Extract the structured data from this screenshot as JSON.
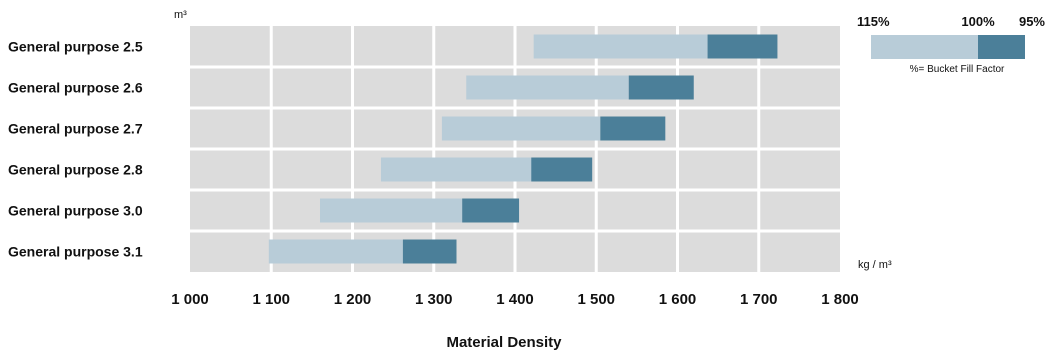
{
  "chart_data": {
    "type": "bar",
    "subtype": "floating-range",
    "xlabel": "Material Density",
    "y_unit": "m³",
    "x_unit": "kg / m³",
    "xlim": [
      1000,
      1800
    ],
    "x_ticks": [
      "1 000",
      "1 100",
      "1 200",
      "1 300",
      "1 400",
      "1 500",
      "1 600",
      "1 700",
      "1 800"
    ],
    "x_tick_values": [
      1000,
      1100,
      1200,
      1300,
      1400,
      1500,
      1600,
      1700,
      1800
    ],
    "grid": true,
    "legend_position": "top-right",
    "colors": {
      "light": "#b8ccd8",
      "dark": "#4b7f99",
      "background": "#dcdcdc",
      "grid": "#ffffff"
    },
    "legend": {
      "labels": [
        "115%",
        "100%",
        "95%"
      ],
      "note": "%= Bucket Fill Factor"
    },
    "categories": [
      "General purpose 2.5",
      "General purpose 2.6",
      "General purpose 2.7",
      "General purpose 2.8",
      "General purpose 3.0",
      "General purpose 3.1"
    ],
    "series": [
      {
        "name": "115%",
        "values": [
          1423,
          1340,
          1310,
          1235,
          1160,
          1097
        ]
      },
      {
        "name": "100%",
        "values": [
          1637,
          1540,
          1505,
          1420,
          1335,
          1262
        ]
      },
      {
        "name": "95%",
        "values": [
          1723,
          1620,
          1585,
          1495,
          1405,
          1328
        ]
      }
    ]
  }
}
